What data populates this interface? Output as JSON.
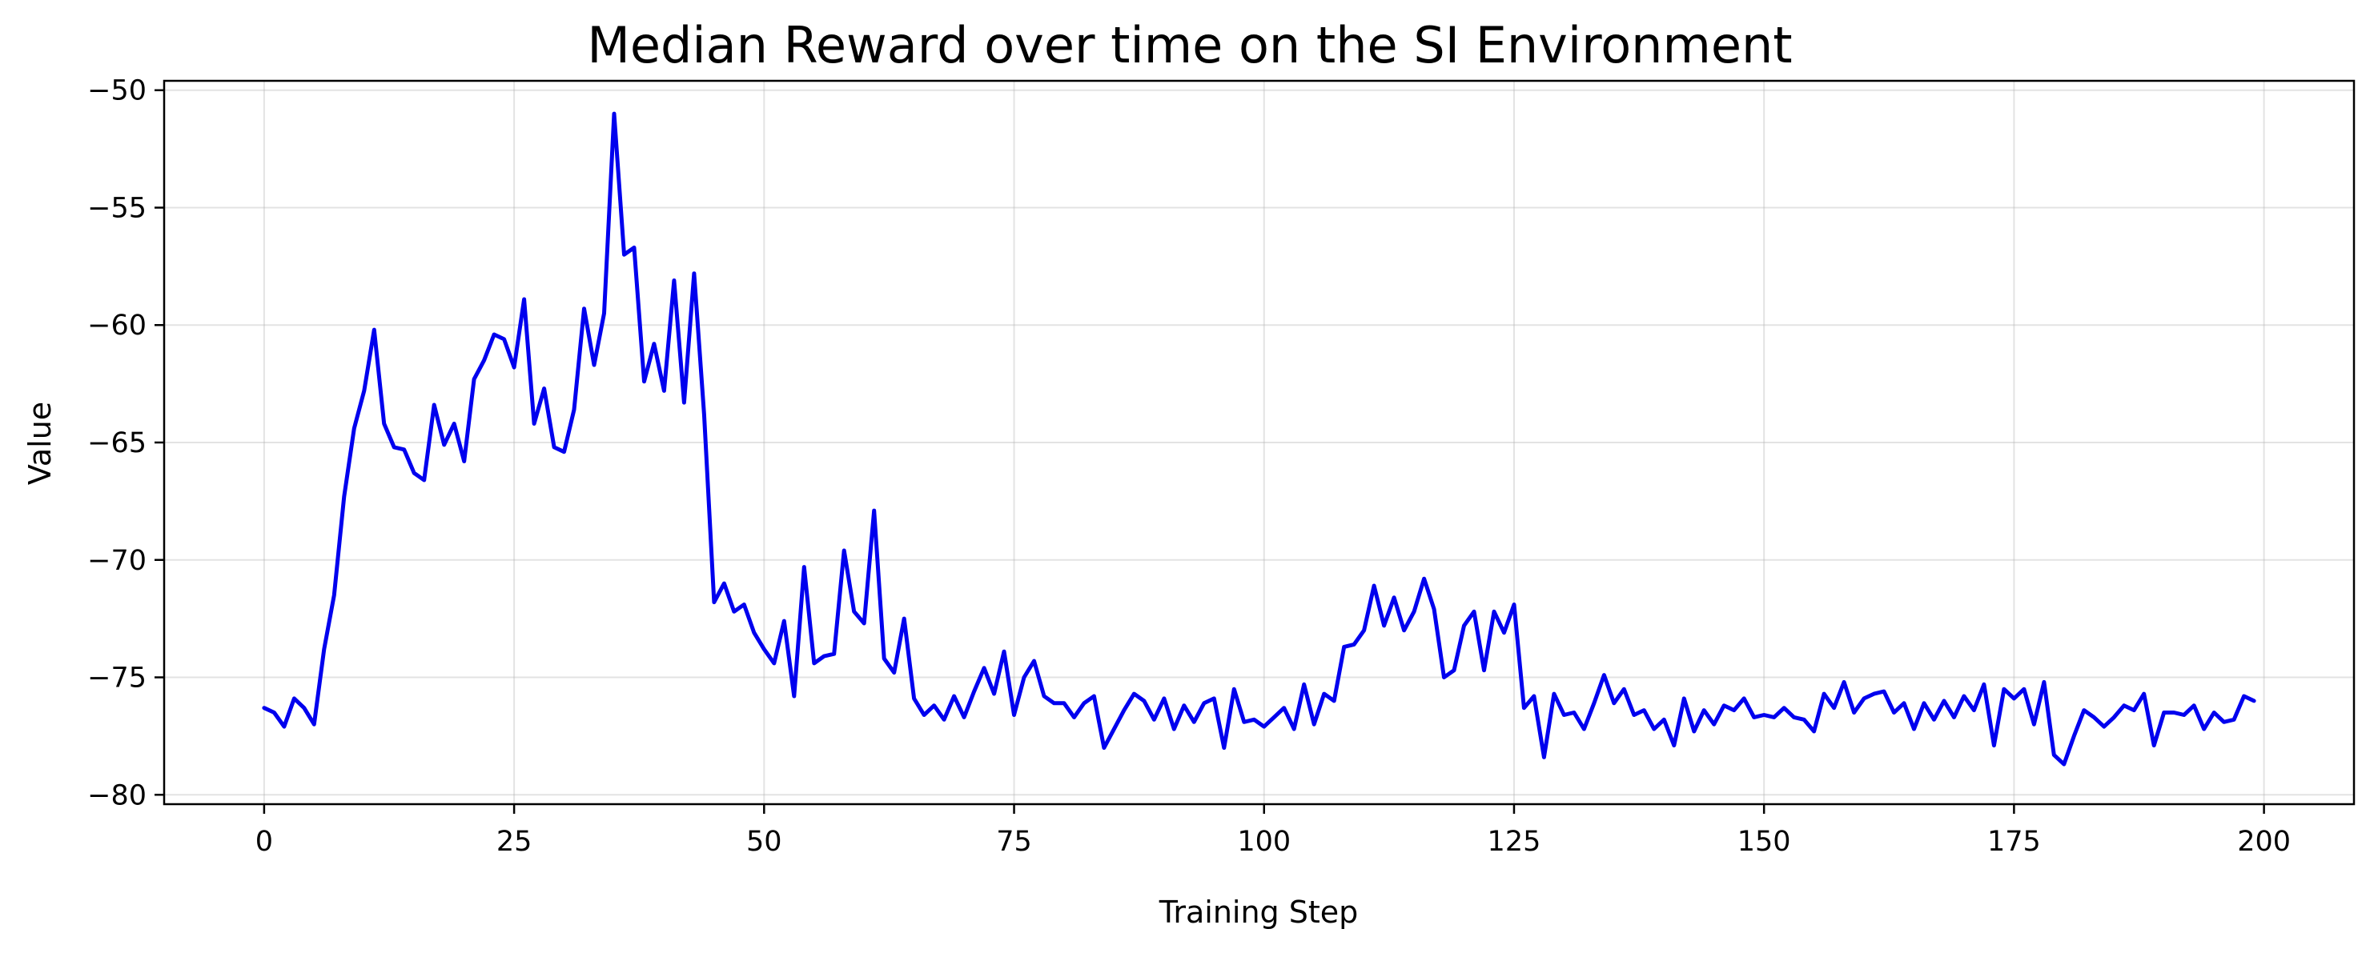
{
  "chart_data": {
    "type": "line",
    "title": "Median Reward over time on the SI Environment",
    "xlabel": "Training Step",
    "ylabel": "Value",
    "xlim": [
      -10,
      209
    ],
    "ylim": [
      -80.4,
      -49.6
    ],
    "xticks": [
      0,
      25,
      50,
      75,
      100,
      125,
      150,
      175,
      200
    ],
    "yticks": [
      -80,
      -75,
      -70,
      -65,
      -60,
      -55,
      -50
    ],
    "grid": true,
    "series": [
      {
        "color": "#0000ee",
        "x": [
          0,
          1,
          2,
          3,
          4,
          5,
          6,
          7,
          8,
          9,
          10,
          11,
          12,
          13,
          14,
          15,
          16,
          17,
          18,
          19,
          20,
          21,
          22,
          23,
          24,
          25,
          26,
          27,
          28,
          29,
          30,
          31,
          32,
          33,
          34,
          35,
          36,
          37,
          38,
          39,
          40,
          41,
          42,
          43,
          44,
          45,
          46,
          47,
          48,
          49,
          50,
          51,
          52,
          53,
          54,
          55,
          56,
          57,
          58,
          59,
          60,
          61,
          62,
          63,
          64,
          65,
          66,
          67,
          68,
          69,
          70,
          71,
          72,
          73,
          74,
          75,
          76,
          77,
          78,
          79,
          80,
          81,
          82,
          83,
          84,
          85,
          86,
          87,
          88,
          89,
          90,
          91,
          92,
          93,
          94,
          95,
          96,
          97,
          98,
          99,
          100,
          101,
          102,
          103,
          104,
          105,
          106,
          107,
          108,
          109,
          110,
          111,
          112,
          113,
          114,
          115,
          116,
          117,
          118,
          119,
          120,
          121,
          122,
          123,
          124,
          125,
          126,
          127,
          128,
          129,
          130,
          131,
          132,
          133,
          134,
          135,
          136,
          137,
          138,
          139,
          140,
          141,
          142,
          143,
          144,
          145,
          146,
          147,
          148,
          149,
          150,
          151,
          152,
          153,
          154,
          155,
          156,
          157,
          158,
          159,
          160,
          161,
          162,
          163,
          164,
          165,
          166,
          167,
          168,
          169,
          170,
          171,
          172,
          173,
          174,
          175,
          176,
          177,
          178,
          179,
          180,
          181,
          182,
          183,
          184,
          185,
          186,
          187,
          188,
          189,
          190,
          191,
          192,
          193,
          194,
          195,
          196,
          197,
          198,
          199
        ],
        "values": [
          -76.3,
          -76.5,
          -77.1,
          -75.9,
          -76.3,
          -77.0,
          -73.8,
          -71.5,
          -67.3,
          -64.4,
          -62.8,
          -60.2,
          -64.2,
          -65.2,
          -65.3,
          -66.3,
          -66.6,
          -63.4,
          -65.1,
          -64.2,
          -65.8,
          -62.3,
          -61.5,
          -60.4,
          -60.6,
          -61.8,
          -58.9,
          -64.2,
          -62.7,
          -65.2,
          -65.4,
          -63.6,
          -59.3,
          -61.7,
          -59.5,
          -51.0,
          -57.0,
          -56.7,
          -62.4,
          -60.8,
          -62.8,
          -58.1,
          -63.3,
          -57.8,
          -63.8,
          -71.8,
          -71.0,
          -72.2,
          -71.9,
          -73.1,
          -73.8,
          -74.4,
          -72.6,
          -75.8,
          -70.3,
          -74.4,
          -74.1,
          -74.0,
          -69.6,
          -72.2,
          -72.7,
          -67.9,
          -74.2,
          -74.8,
          -72.5,
          -75.9,
          -76.6,
          -76.2,
          -76.8,
          -75.8,
          -76.7,
          -75.6,
          -74.6,
          -75.7,
          -73.9,
          -76.6,
          -75.0,
          -74.3,
          -75.8,
          -76.1,
          -76.1,
          -76.7,
          -76.1,
          -75.8,
          -78.0,
          -77.2,
          -76.4,
          -75.7,
          -76.0,
          -76.8,
          -75.9,
          -77.2,
          -76.2,
          -76.9,
          -76.1,
          -75.9,
          -78.0,
          -75.5,
          -76.9,
          -76.8,
          -77.1,
          -76.7,
          -76.3,
          -77.2,
          -75.3,
          -77.0,
          -75.7,
          -76.0,
          -73.7,
          -73.6,
          -73.0,
          -71.1,
          -72.8,
          -71.6,
          -73.0,
          -72.2,
          -70.8,
          -72.1,
          -75.0,
          -74.7,
          -72.8,
          -72.2,
          -74.7,
          -72.2,
          -73.1,
          -71.9,
          -76.3,
          -75.8,
          -78.4,
          -75.7,
          -76.6,
          -76.5,
          -77.2,
          -76.1,
          -74.9,
          -76.1,
          -75.5,
          -76.6,
          -76.4,
          -77.2,
          -76.8,
          -77.9,
          -75.9,
          -77.3,
          -76.4,
          -77.0,
          -76.2,
          -76.4,
          -75.9,
          -76.7,
          -76.6,
          -76.7,
          -76.3,
          -76.7,
          -76.8,
          -77.3,
          -75.7,
          -76.3,
          -75.2,
          -76.5,
          -75.9,
          -75.7,
          -75.6,
          -76.5,
          -76.1,
          -77.2,
          -76.1,
          -76.8,
          -76.0,
          -76.7,
          -75.8,
          -76.4,
          -75.3,
          -77.9,
          -75.5,
          -75.9,
          -75.5,
          -77.0,
          -75.2,
          -78.3,
          -78.7,
          -77.5,
          -76.4,
          -76.7,
          -77.1,
          -76.7,
          -76.2,
          -76.4,
          -75.7,
          -77.9,
          -76.5,
          -76.5,
          -76.6,
          -76.2,
          -77.2,
          -76.5,
          -76.9,
          -76.8,
          -75.8,
          -76.0
        ]
      }
    ]
  }
}
